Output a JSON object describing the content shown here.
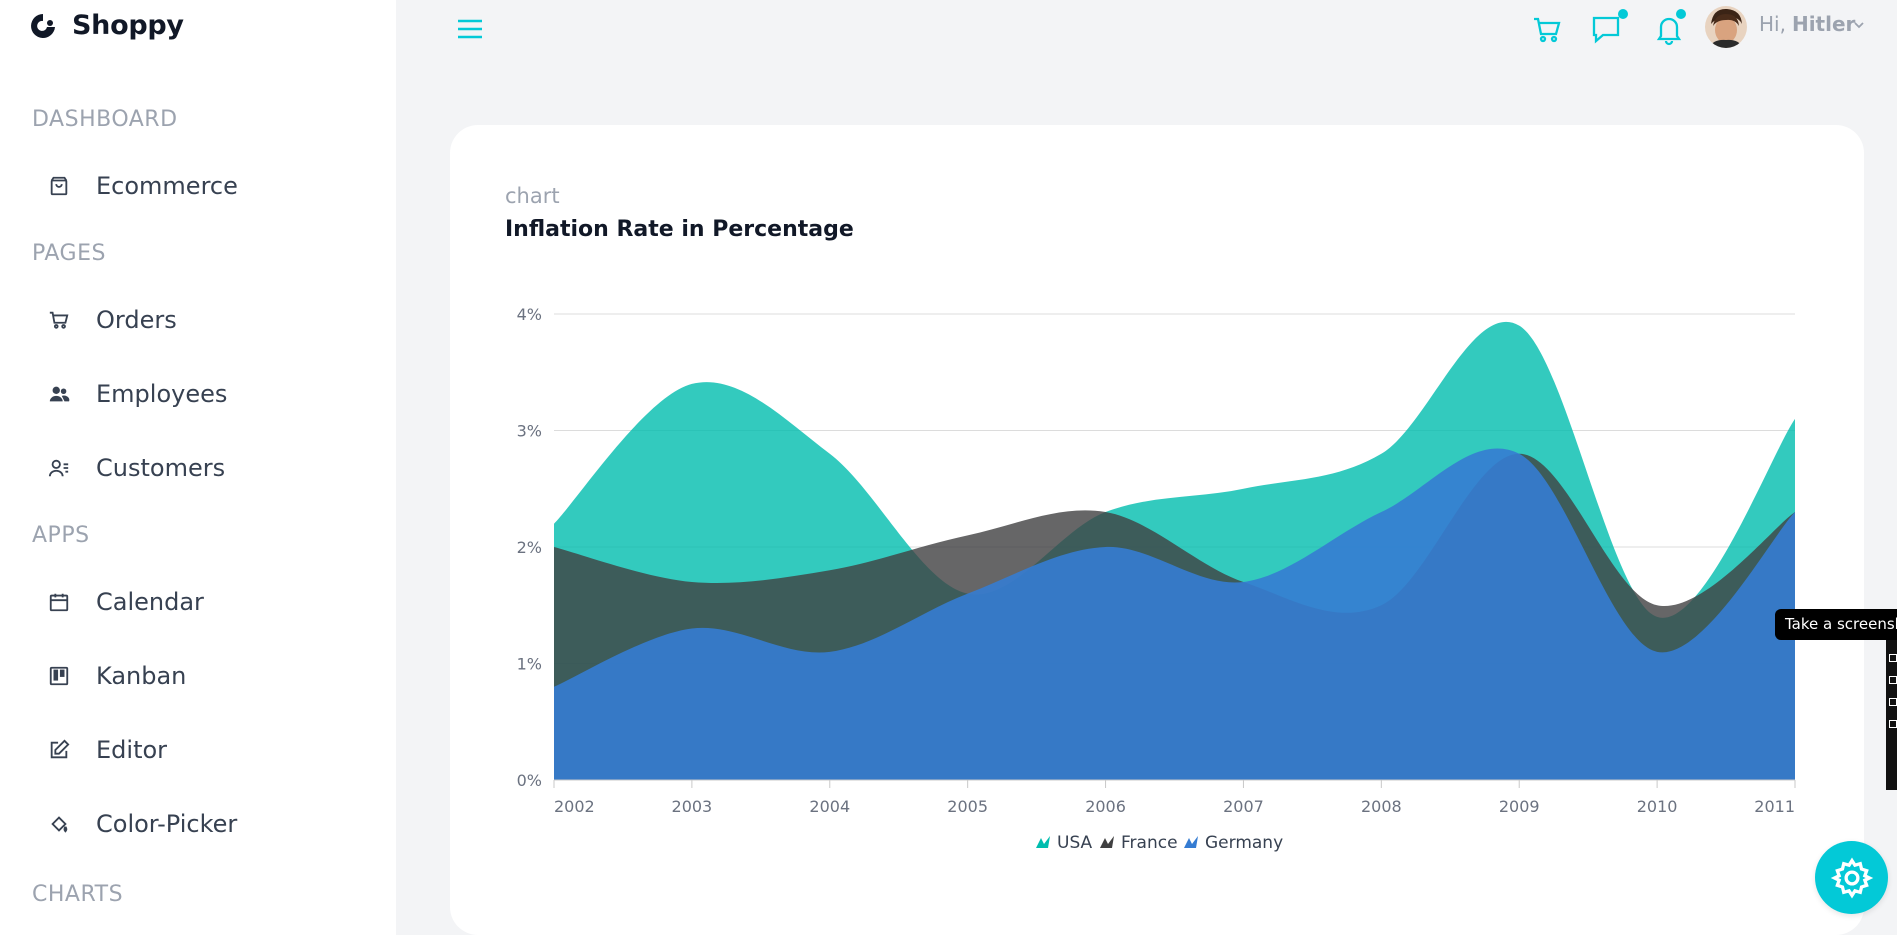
{
  "app": {
    "name": "Shoppy",
    "logo_icon": "shoppy-logo-icon"
  },
  "sidebar": {
    "sections": [
      {
        "title": "DASHBOARD",
        "items": [
          {
            "label": "Ecommerce",
            "icon": "shopping-bag-icon"
          }
        ]
      },
      {
        "title": "PAGES",
        "items": [
          {
            "label": "Orders",
            "icon": "cart-icon"
          },
          {
            "label": "Employees",
            "icon": "users-icon"
          },
          {
            "label": "Customers",
            "icon": "customers-icon"
          }
        ]
      },
      {
        "title": "APPS",
        "items": [
          {
            "label": "Calendar",
            "icon": "calendar-icon"
          },
          {
            "label": "Kanban",
            "icon": "kanban-icon"
          },
          {
            "label": "Editor",
            "icon": "edit-icon"
          },
          {
            "label": "Color-Picker",
            "icon": "color-picker-icon"
          }
        ]
      },
      {
        "title": "CHARTS",
        "items": []
      }
    ]
  },
  "topbar": {
    "menu_icon": "hamburger-icon",
    "icons": [
      "cart-icon",
      "chat-icon",
      "bell-icon"
    ],
    "greeting": "Hi,",
    "username": "Hitler"
  },
  "card": {
    "subtitle": "chart",
    "title": "Inflation Rate in Percentage"
  },
  "chart_data": {
    "type": "area",
    "title": "Inflation Rate in Percentage",
    "x": [
      2002,
      2003,
      2004,
      2005,
      2006,
      2007,
      2008,
      2009,
      2010,
      2011
    ],
    "x_labels": [
      "2002",
      "2003",
      "2004",
      "2005",
      "2006",
      "2007",
      "2008",
      "2009",
      "2010",
      "2011"
    ],
    "y_ticks": [
      "0%",
      "1%",
      "2%",
      "3%",
      "4%"
    ],
    "ylim": [
      0,
      4
    ],
    "grid": true,
    "legend_position": "bottom-center",
    "series": [
      {
        "name": "USA",
        "color": "#00bdae",
        "values": [
          2.2,
          3.4,
          2.8,
          1.6,
          2.3,
          2.5,
          2.8,
          3.9,
          1.4,
          3.1
        ]
      },
      {
        "name": "France",
        "color": "#404041",
        "values": [
          2.0,
          1.7,
          1.8,
          2.1,
          2.3,
          1.7,
          1.5,
          2.8,
          1.5,
          2.3
        ]
      },
      {
        "name": "Germany",
        "color": "#357cd2",
        "values": [
          0.8,
          1.3,
          1.1,
          1.6,
          2.0,
          1.7,
          2.3,
          2.8,
          1.1,
          2.3
        ]
      }
    ]
  },
  "tooltip": {
    "text": "Take a screensh"
  },
  "settings": {
    "icon": "gear-icon",
    "color": "#03c9d7"
  },
  "colors": {
    "accent": "#03c9d7"
  }
}
